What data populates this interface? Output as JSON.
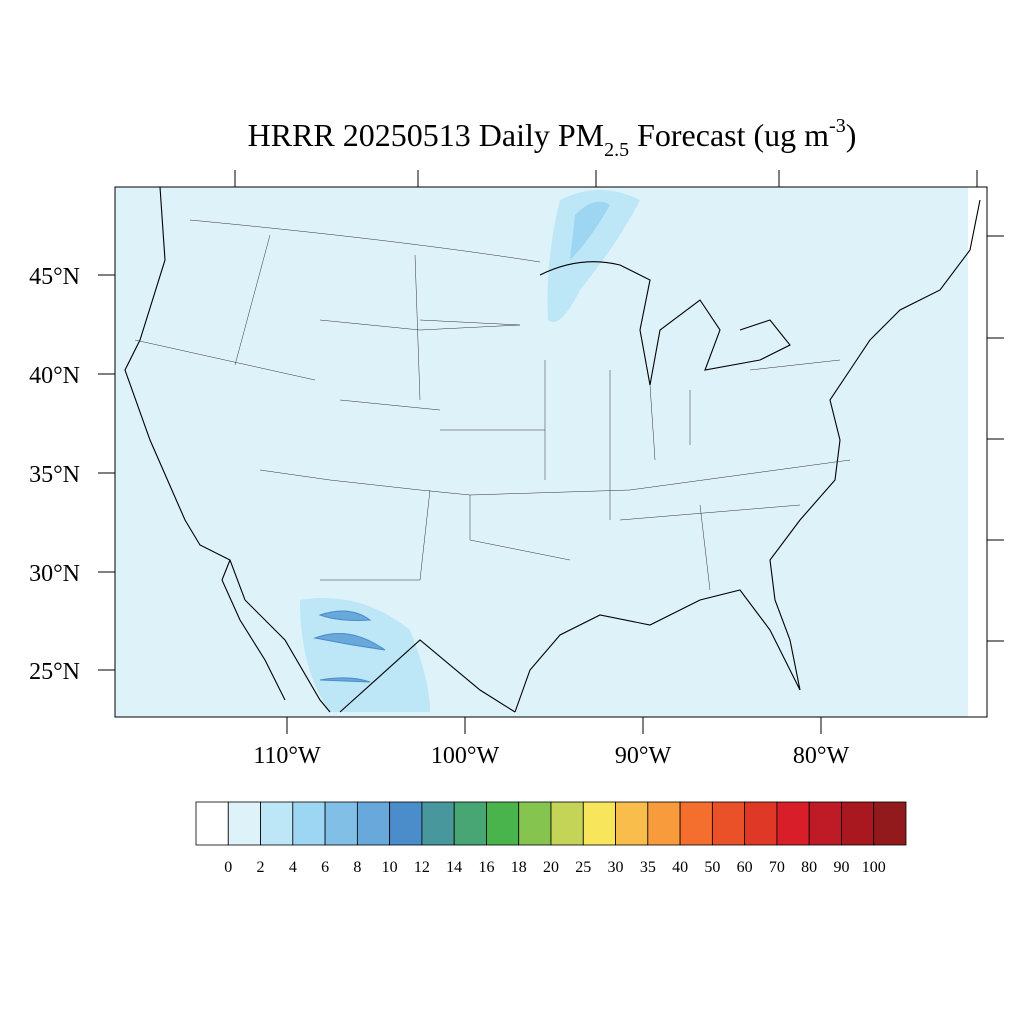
{
  "title": {
    "main": "HRRR 20250513 Daily PM",
    "subscript": "2.5",
    "rest": " Forecast (ug m",
    "superscript": "-3",
    "close": ")"
  },
  "map": {
    "lat_labels": [
      "45°N",
      "40°N",
      "35°N",
      "30°N",
      "25°N"
    ],
    "lon_labels": [
      "110°W",
      "100°W",
      "90°W",
      "80°W"
    ]
  },
  "colorbar": {
    "colors": [
      "#ffffff",
      "#def2fa",
      "#bde6f7",
      "#9dd6f3",
      "#82bfe6",
      "#68a8da",
      "#4b8cca",
      "#48979c",
      "#48a574",
      "#4ab44c",
      "#86c450",
      "#c3d457",
      "#f7e55b",
      "#f8bd4a",
      "#f89b3d",
      "#f46e2d",
      "#ea5129",
      "#df3826",
      "#d81f29",
      "#be1b27",
      "#a8181e",
      "#921a1d"
    ],
    "labels": [
      "0",
      "2",
      "4",
      "6",
      "8",
      "10",
      "12",
      "14",
      "16",
      "18",
      "20",
      "25",
      "30",
      "35",
      "40",
      "50",
      "60",
      "70",
      "80",
      "90",
      "100"
    ]
  }
}
